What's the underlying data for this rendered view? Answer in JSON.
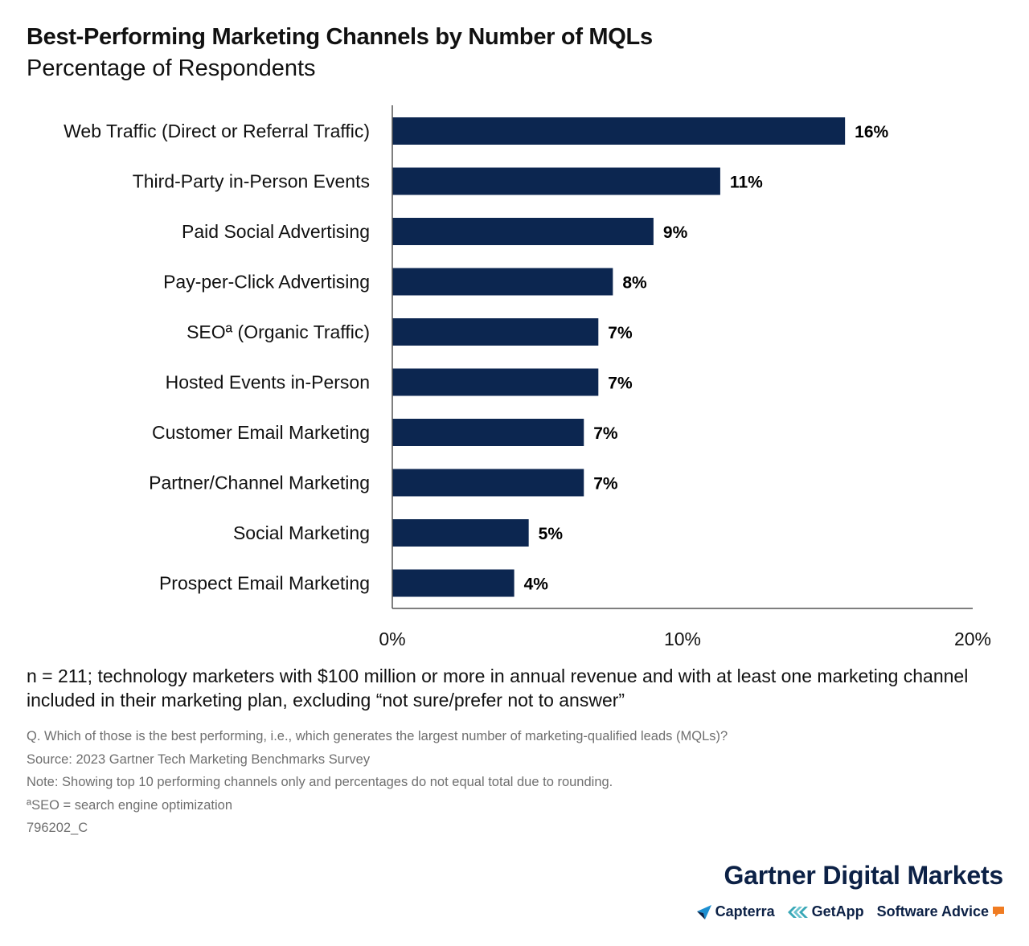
{
  "header": {
    "title": "Best-Performing Marketing Channels by Number of MQLs",
    "subtitle": "Percentage of Respondents"
  },
  "chart_data": {
    "type": "bar",
    "orientation": "horizontal",
    "title": "Best-Performing Marketing Channels by Number of MQLs",
    "subtitle": "Percentage of Respondents",
    "categories": [
      "Web Traffic (Direct or Referral Traffic)",
      "Third-Party in-Person Events",
      "Paid Social Advertising",
      "Pay-per-Click Advertising",
      "SEOª (Organic Traffic)",
      "Hosted Events in-Person",
      "Customer Email Marketing",
      "Partner/Channel Marketing",
      "Social Marketing",
      "Prospect Email Marketing"
    ],
    "values": [
      15.6,
      11.3,
      9.0,
      7.6,
      7.1,
      7.1,
      6.6,
      6.6,
      4.7,
      4.2
    ],
    "data_labels": [
      "16%",
      "11%",
      "9%",
      "8%",
      "7%",
      "7%",
      "7%",
      "7%",
      "5%",
      "4%"
    ],
    "xlim": [
      0,
      20
    ],
    "xticks": [
      0,
      10,
      20
    ],
    "xtick_labels": [
      "0%",
      "10%",
      "20%"
    ],
    "xlabel": "",
    "ylabel": "",
    "grid": false,
    "legend": "none",
    "bar_color": "#0c2650"
  },
  "footer": {
    "sample": "n = 211; technology marketers with $100 million or more in annual revenue and with at least one marketing channel included in their marketing plan, excluding “not sure/prefer not to answer”",
    "question": "Q. Which of those is the best performing, i.e., which generates the largest number of marketing-qualified leads (MQLs)?",
    "source": "Source: 2023 Gartner Tech Marketing Benchmarks Survey",
    "note": "Note: Showing top 10 performing channels only and percentages do not equal total due to rounding.",
    "footnote": "ªSEO = search engine optimization",
    "id": "796202_C"
  },
  "branding": {
    "company": "Gartner Digital Markets",
    "logos": [
      "Capterra",
      "GetApp",
      "Software Advice"
    ],
    "colors": {
      "navy": "#0c2146",
      "capterra_blue": "#1c8fd1",
      "getapp_teal": "#3aa8b7",
      "software_advice_orange": "#f07c22"
    }
  }
}
